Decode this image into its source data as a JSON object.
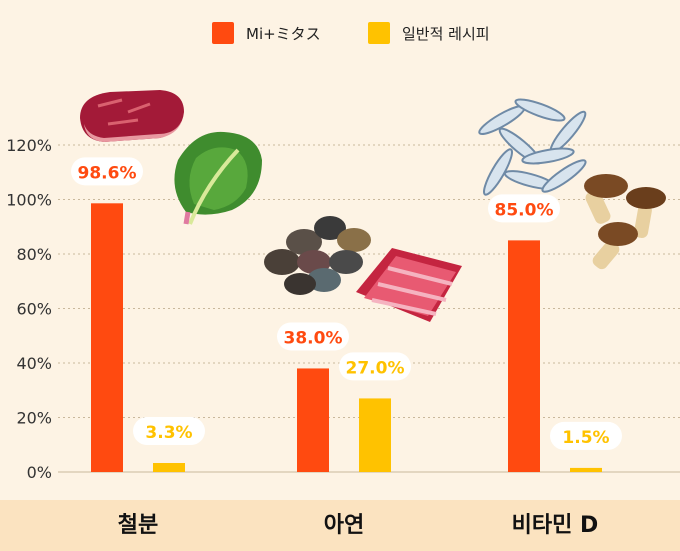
{
  "chart_data": {
    "type": "bar",
    "categories": [
      "철분",
      "아연",
      "비타민 D"
    ],
    "series": [
      {
        "name": "Mi+ミタス",
        "values": [
          98.6,
          38.0,
          85.0
        ],
        "color": "#ff4a10"
      },
      {
        "name": "일반적 레시피",
        "values": [
          3.3,
          27.0,
          1.5
        ],
        "color": "#ffc200"
      }
    ],
    "data_labels": [
      [
        "98.6%",
        "38.0%",
        "85.0%"
      ],
      [
        "3.3%",
        "27.0%",
        "1.5%"
      ]
    ],
    "yticks": [
      "0%",
      "20%",
      "40%",
      "60%",
      "80%",
      "100%",
      "120%"
    ],
    "ylim": [
      0,
      130
    ],
    "grid": true,
    "legend_position": "top-center",
    "title": "",
    "xlabel": "",
    "ylabel": ""
  },
  "illustrations": [
    "beef-icon",
    "lettuce-icon",
    "clams-icon",
    "meat-slices-icon",
    "sardines-icon",
    "mushrooms-icon"
  ],
  "colors": {
    "background": "#fdf3e4",
    "axis_band": "#fbe3c0",
    "grid": "#c9b89c",
    "label_bubble": "#ffffff"
  }
}
